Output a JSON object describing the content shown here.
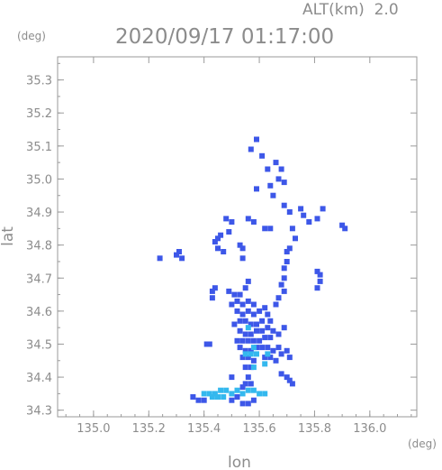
{
  "chart_data": {
    "type": "scatter",
    "title": "2020/09/17 01:17:00",
    "altitude_label": "ALT(km)  2.0",
    "xlabel": "lon",
    "ylabel": "lat",
    "x_unit": "(deg)",
    "y_unit": "(deg)",
    "xlim": [
      134.87,
      136.17
    ],
    "ylim": [
      34.28,
      35.37
    ],
    "x_ticks": [
      "135.0",
      "135.2",
      "135.4",
      "135.6",
      "135.8",
      "136.0"
    ],
    "y_ticks": [
      "34.3",
      "34.4",
      "34.5",
      "34.6",
      "34.7",
      "34.8",
      "34.9",
      "35.0",
      "35.1",
      "35.2",
      "35.3"
    ],
    "grid": false,
    "colors": {
      "axis": "#9a9a9a",
      "text": "#8c8c8c",
      "echo_blue": "#3d57e8",
      "echo_light": "#34b8ee"
    },
    "series": [
      {
        "color": "#3d57e8",
        "points": [
          [
            135.59,
            35.12
          ],
          [
            135.57,
            35.09
          ],
          [
            135.61,
            35.07
          ],
          [
            135.63,
            35.03
          ],
          [
            135.66,
            35.05
          ],
          [
            135.68,
            35.03
          ],
          [
            135.67,
            35.0
          ],
          [
            135.69,
            34.99
          ],
          [
            135.64,
            34.98
          ],
          [
            135.59,
            34.97
          ],
          [
            135.65,
            34.95
          ],
          [
            135.69,
            34.92
          ],
          [
            135.71,
            34.9
          ],
          [
            135.75,
            34.91
          ],
          [
            135.76,
            34.89
          ],
          [
            135.83,
            34.91
          ],
          [
            135.81,
            34.88
          ],
          [
            135.78,
            34.87
          ],
          [
            135.9,
            34.86
          ],
          [
            135.91,
            34.85
          ],
          [
            135.72,
            34.85
          ],
          [
            135.73,
            34.82
          ],
          [
            135.71,
            34.79
          ],
          [
            135.7,
            34.75
          ],
          [
            135.69,
            34.73
          ],
          [
            135.7,
            34.78
          ],
          [
            135.48,
            34.88
          ],
          [
            135.5,
            34.87
          ],
          [
            135.49,
            34.84
          ],
          [
            135.46,
            34.83
          ],
          [
            135.45,
            34.82
          ],
          [
            135.44,
            34.81
          ],
          [
            135.45,
            34.79
          ],
          [
            135.47,
            34.78
          ],
          [
            135.56,
            34.88
          ],
          [
            135.58,
            34.87
          ],
          [
            135.62,
            34.85
          ],
          [
            135.64,
            34.85
          ],
          [
            135.53,
            34.8
          ],
          [
            135.54,
            34.79
          ],
          [
            135.54,
            34.76
          ],
          [
            135.3,
            34.77
          ],
          [
            135.24,
            34.76
          ],
          [
            135.31,
            34.78
          ],
          [
            135.32,
            34.76
          ],
          [
            135.81,
            34.72
          ],
          [
            135.82,
            34.71
          ],
          [
            135.82,
            34.69
          ],
          [
            135.81,
            34.67
          ],
          [
            135.69,
            34.7
          ],
          [
            135.68,
            34.68
          ],
          [
            135.69,
            34.66
          ],
          [
            135.67,
            34.64
          ],
          [
            135.66,
            34.62
          ],
          [
            135.44,
            34.67
          ],
          [
            135.43,
            34.66
          ],
          [
            135.43,
            34.64
          ],
          [
            135.56,
            34.69
          ],
          [
            135.55,
            34.67
          ],
          [
            135.49,
            34.66
          ],
          [
            135.51,
            34.65
          ],
          [
            135.53,
            34.65
          ],
          [
            135.52,
            34.63
          ],
          [
            135.54,
            34.62
          ],
          [
            135.56,
            34.63
          ],
          [
            135.58,
            34.62
          ],
          [
            135.5,
            34.62
          ],
          [
            135.52,
            34.6
          ],
          [
            135.54,
            34.59
          ],
          [
            135.56,
            34.6
          ],
          [
            135.58,
            34.59
          ],
          [
            135.6,
            34.6
          ],
          [
            135.62,
            34.61
          ],
          [
            135.63,
            34.59
          ],
          [
            135.64,
            34.57
          ],
          [
            135.61,
            34.57
          ],
          [
            135.59,
            34.56
          ],
          [
            135.57,
            34.56
          ],
          [
            135.55,
            34.57
          ],
          [
            135.53,
            34.57
          ],
          [
            135.51,
            34.56
          ],
          [
            135.53,
            34.54
          ],
          [
            135.55,
            34.53
          ],
          [
            135.57,
            34.53
          ],
          [
            135.59,
            34.54
          ],
          [
            135.61,
            34.54
          ],
          [
            135.63,
            34.55
          ],
          [
            135.65,
            34.54
          ],
          [
            135.64,
            34.52
          ],
          [
            135.62,
            34.52
          ],
          [
            135.6,
            34.51
          ],
          [
            135.58,
            34.51
          ],
          [
            135.56,
            34.51
          ],
          [
            135.54,
            34.51
          ],
          [
            135.52,
            34.51
          ],
          [
            135.53,
            34.49
          ],
          [
            135.55,
            34.48
          ],
          [
            135.57,
            34.48
          ],
          [
            135.59,
            34.49
          ],
          [
            135.61,
            34.49
          ],
          [
            135.63,
            34.49
          ],
          [
            135.65,
            34.48
          ],
          [
            135.67,
            34.49
          ],
          [
            135.64,
            34.46
          ],
          [
            135.62,
            34.46
          ],
          [
            135.66,
            34.45
          ],
          [
            135.68,
            34.47
          ],
          [
            135.7,
            34.48
          ],
          [
            135.71,
            34.46
          ],
          [
            135.54,
            34.46
          ],
          [
            135.56,
            34.46
          ],
          [
            135.58,
            34.45
          ],
          [
            135.42,
            34.5
          ],
          [
            135.41,
            34.5
          ],
          [
            135.55,
            34.43
          ],
          [
            135.57,
            34.43
          ],
          [
            135.56,
            34.4
          ],
          [
            135.55,
            34.38
          ],
          [
            135.57,
            34.38
          ],
          [
            135.54,
            34.37
          ],
          [
            135.68,
            34.41
          ],
          [
            135.7,
            34.4
          ],
          [
            135.71,
            34.39
          ],
          [
            135.72,
            34.38
          ],
          [
            135.5,
            34.4
          ],
          [
            135.67,
            34.53
          ],
          [
            135.69,
            34.55
          ],
          [
            135.54,
            34.32
          ],
          [
            135.56,
            34.32
          ],
          [
            135.58,
            34.33
          ],
          [
            135.36,
            34.34
          ],
          [
            135.38,
            34.33
          ],
          [
            135.4,
            34.33
          ],
          [
            135.52,
            34.34
          ],
          [
            135.5,
            34.33
          ]
        ]
      },
      {
        "color": "#34b8ee",
        "points": [
          [
            135.4,
            34.35
          ],
          [
            135.42,
            34.35
          ],
          [
            135.44,
            34.35
          ],
          [
            135.46,
            34.36
          ],
          [
            135.48,
            34.36
          ],
          [
            135.5,
            34.35
          ],
          [
            135.52,
            34.36
          ],
          [
            135.54,
            34.35
          ],
          [
            135.56,
            34.36
          ],
          [
            135.58,
            34.36
          ],
          [
            135.43,
            34.34
          ],
          [
            135.45,
            34.34
          ],
          [
            135.47,
            34.34
          ],
          [
            135.6,
            34.35
          ],
          [
            135.62,
            34.35
          ],
          [
            135.55,
            34.47
          ],
          [
            135.57,
            34.47
          ],
          [
            135.59,
            34.47
          ],
          [
            135.58,
            34.43
          ],
          [
            135.62,
            34.44
          ],
          [
            135.63,
            34.47
          ],
          [
            135.58,
            34.49
          ],
          [
            135.56,
            34.55
          ]
        ]
      }
    ]
  }
}
